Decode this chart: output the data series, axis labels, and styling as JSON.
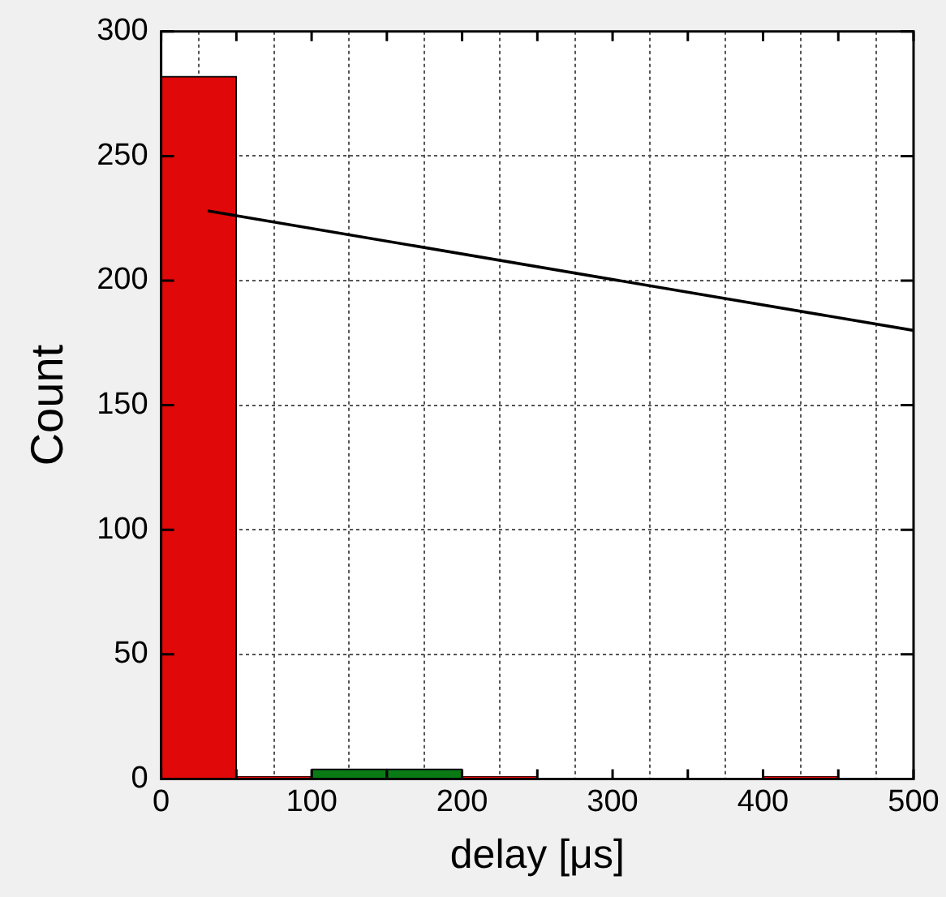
{
  "chart_data": {
    "type": "histogram",
    "xlabel": "delay [μs]",
    "ylabel": "Count",
    "bins": [
      0,
      50,
      100,
      150,
      200,
      250,
      300,
      350,
      400,
      450,
      500
    ],
    "values": [
      282,
      1,
      4,
      4,
      1,
      0,
      0,
      0,
      1,
      0
    ],
    "colors": [
      "#e00808",
      "#e00808",
      "#0a7a14",
      "#0a7a14",
      "#e00808",
      "#e00808",
      "#e00808",
      "#e00808",
      "#e00808",
      "#e00808"
    ],
    "xlim": [
      0,
      500
    ],
    "xticks": [
      0,
      {
        "value": 50,
        "label": null
      },
      100,
      {
        "value": 150,
        "label": null
      },
      200,
      {
        "value": 250,
        "label": null
      },
      300,
      {
        "value": 350,
        "label": null
      },
      400,
      {
        "value": 450,
        "label": null
      },
      500
    ],
    "series": [
      {
        "type": "line",
        "color": "#000000",
        "x": [
          31,
          500
        ],
        "values": [
          228,
          180
        ]
      }
    ],
    "ylim": [
      0,
      300
    ],
    "yticks": [
      0,
      50,
      100,
      150,
      200,
      250,
      300
    ],
    "grid": true,
    "legend": false
  }
}
